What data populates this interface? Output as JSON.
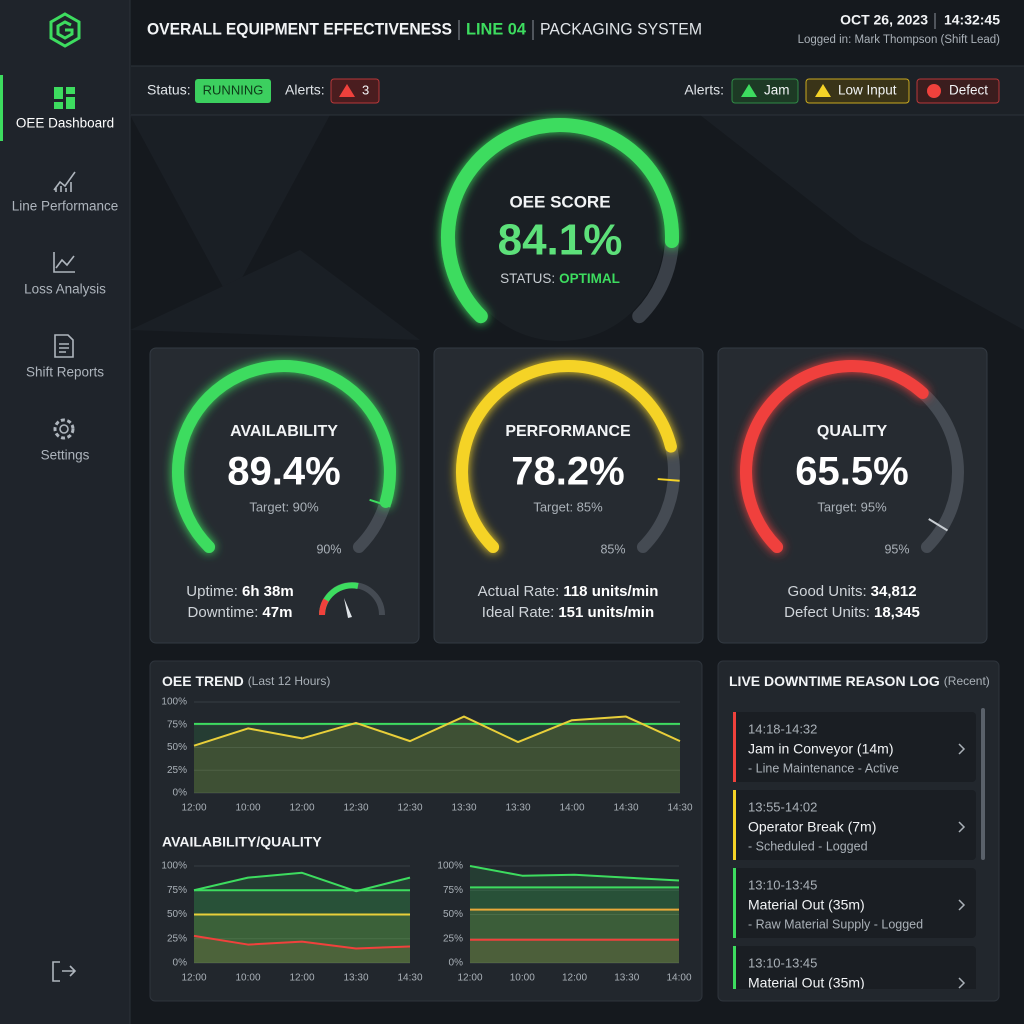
{
  "header": {
    "title": "OVERALL EQUIPMENT EFFECTIVENESS",
    "line": "LINE 04",
    "system": "PACKAGING SYSTEM",
    "date": "OCT 26, 2023",
    "time": "14:32:45",
    "user": "Logged in: Mark Thompson (Shift Lead)"
  },
  "sidebar": {
    "items": [
      "OEE Dashboard",
      "Line Performance",
      "Loss Analysis",
      "Shift Reports",
      "Settings"
    ],
    "active_item": 0
  },
  "status_bar": {
    "status_label": "Status:",
    "status": "RUNNING",
    "alerts_label": "Alerts:",
    "alert_count": 3,
    "tags_label": "Alerts:",
    "tags": [
      "Jam",
      "Low Input",
      "Defect"
    ]
  },
  "oee": {
    "label": "OEE SCORE",
    "value": 84.1,
    "value_label": "84.1%",
    "status_label": "STATUS:",
    "status": "OPTIMAL",
    "color": "#3ddc5f"
  },
  "kpis": [
    {
      "title": "AVAILABILITY",
      "value": 89.4,
      "value_label": "89.4%",
      "target": 90,
      "target_text": "Target: 90%",
      "target_label": "90%",
      "color": "#3ddc5f",
      "stats": [
        {
          "label": "Uptime:",
          "value": "6h 38m"
        },
        {
          "label": "Downtime:",
          "value": "47m"
        }
      ]
    },
    {
      "title": "PERFORMANCE",
      "value": 78.2,
      "value_label": "78.2%",
      "target": 85,
      "target_text": "Target: 85%",
      "target_label": "85%",
      "color": "#f5d327",
      "stats": [
        {
          "label": "Actual Rate:",
          "value": "118 units/min"
        },
        {
          "label": "Ideal Rate:",
          "value": "151 units/min"
        }
      ]
    },
    {
      "title": "QUALITY",
      "value": 65.5,
      "value_label": "65.5%",
      "target": 95,
      "target_text": "Target: 95%",
      "target_label": "95%",
      "color": "#f0413c",
      "stats": [
        {
          "label": "Good Units:",
          "value": "34,812"
        },
        {
          "label": "Defect Units:",
          "value": "18,345"
        }
      ]
    }
  ],
  "availability_quality_title": "AVAILABILITY/QUALITY",
  "chart_data": [
    {
      "type": "line",
      "title": "OEE TREND",
      "subtitle": "(Last 12 Hours)",
      "categories": [
        "12:00",
        "10:00",
        "12:00",
        "12:30",
        "12:30",
        "13:30",
        "13:30",
        "14:00",
        "14:30",
        "14:30"
      ],
      "series": [
        {
          "color": "#3ddc5f",
          "values": [
            76,
            76,
            76,
            76,
            76,
            76,
            76,
            76,
            76,
            76
          ]
        },
        {
          "color": "#e8cf3a",
          "values": [
            52,
            71,
            60,
            77,
            57,
            84,
            56,
            80,
            84,
            57
          ]
        }
      ],
      "ylim": [
        0,
        100
      ],
      "yticks": [
        {
          "value": 0,
          "label": "0%"
        },
        {
          "value": 25,
          "label": "25%"
        },
        {
          "value": 50,
          "label": "50%"
        },
        {
          "value": 75,
          "label": "75%"
        },
        {
          "value": 100,
          "label": "100%"
        }
      ],
      "grid": true
    },
    {
      "type": "line",
      "categories": [
        "12:00",
        "10:00",
        "12:00",
        "13:30",
        "14:30"
      ],
      "series": [
        {
          "color": "#f0413c",
          "values": [
            28,
            19,
            22,
            15,
            17
          ]
        },
        {
          "color": "#e8cf3a",
          "values": [
            50,
            50,
            50,
            50,
            50
          ]
        },
        {
          "color": "#3ddc5f",
          "values": [
            75,
            75,
            75,
            75,
            75
          ]
        },
        {
          "color": "#3ddc5f",
          "values": [
            75,
            88,
            93,
            74,
            88
          ]
        }
      ],
      "ylim": [
        0,
        100
      ],
      "yticks": [
        {
          "value": 0,
          "label": "0%"
        },
        {
          "value": 25,
          "label": "25%"
        },
        {
          "value": 50,
          "label": "50%"
        },
        {
          "value": 75,
          "label": "75%"
        },
        {
          "value": 100,
          "label": "100%"
        }
      ],
      "grid": true
    },
    {
      "type": "line",
      "categories": [
        "12:00",
        "10:00",
        "12:00",
        "13:30",
        "14:00"
      ],
      "series": [
        {
          "color": "#f0413c",
          "values": [
            24,
            24,
            24,
            24,
            24
          ]
        },
        {
          "color": "#e8a83a",
          "values": [
            55,
            55,
            55,
            55,
            55
          ]
        },
        {
          "color": "#3ddc5f",
          "values": [
            78,
            78,
            78,
            78,
            78
          ]
        },
        {
          "color": "#3ddc5f",
          "values": [
            100,
            90,
            91,
            88,
            85
          ]
        }
      ],
      "ylim": [
        0,
        100
      ],
      "yticks": [
        {
          "value": 0,
          "label": "0%"
        },
        {
          "value": 25,
          "label": "25%"
        },
        {
          "value": 50,
          "label": "50%"
        },
        {
          "value": 75,
          "label": "75%"
        },
        {
          "value": 100,
          "label": "100%"
        }
      ],
      "grid": true
    }
  ],
  "downtime_log": {
    "title": "LIVE DOWNTIME REASON LOG",
    "subtitle": "(Recent)",
    "entries": [
      {
        "time": "14:18-14:32",
        "reason": "Jam in Conveyor (14m)",
        "detail": "- Line Maintenance - Active",
        "color": "#f0413c"
      },
      {
        "time": "13:55-14:02",
        "reason": "Operator Break (7m)",
        "detail": "- Scheduled - Logged",
        "color": "#f5d327"
      },
      {
        "time": "13:10-13:45",
        "reason": "Material Out (35m)",
        "detail": "- Raw Material Supply - Logged",
        "color": "#3ddc5f"
      },
      {
        "time": "13:10-13:45",
        "reason": "Material Out (35m)",
        "color": "#3ddc5f"
      }
    ]
  }
}
